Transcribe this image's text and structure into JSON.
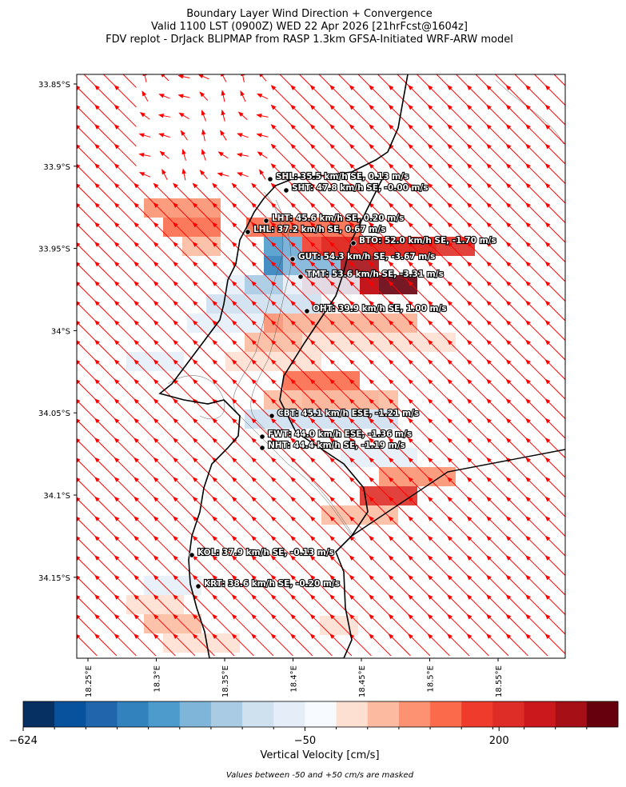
{
  "header": {
    "title_lines": [
      "Boundary Layer Wind Direction + Convergence",
      "Valid 1100 LST (0900Z) WED 22 Apr 2026 [21hrFcst@1604z]",
      "FDV replot - DrJack BLIPMAP from RASP 1.3km GFSA-Initiated WRF-ARW model"
    ]
  },
  "map": {
    "lat_ticks": [
      "33.85°S",
      "33.9°S",
      "33.95°S",
      "34°S",
      "34.05°S",
      "34.1°S",
      "34.15°S"
    ],
    "lon_ticks": [
      "18.25°E",
      "18.3°E",
      "18.35°E",
      "18.4°E",
      "18.45°E",
      "18.5°E",
      "18.55°E"
    ],
    "stations": [
      "SHL: 35.5 km/h SE, 0.13 m/s",
      "SHT: 47.8 km/h SE, -0.00 m/s",
      "LHT: 45.6 km/h SE, 0.20 m/s",
      "LHL: 37.2 km/h SE, 0.67 m/s",
      "BTO: 52.0 km/h SE, -1.70 m/s",
      "GUT: 54.3 km/h SE, -3.67 m/s",
      "TMT: 53.6 km/h SE, -3.31 m/s",
      "OHT: 39.9 km/h SE, 1.00 m/s",
      "CBT: 45.1 km/h ESE, -1.21 m/s",
      "FWT: 44.0 km/h ESE, -1.36 m/s",
      "NHT: 44.4 km/h SE, -1.19 m/s",
      "KOL: 37.9 km/h SE, -0.13 m/s",
      "KRT: 38.6 km/h SE, -0.20 m/s"
    ]
  },
  "colorbar": {
    "label": "Vertical Velocity [cm/s]",
    "tick_labels": [
      "−624",
      "−50",
      "200"
    ],
    "colors": [
      "#053061",
      "#08519c",
      "#2166ac",
      "#3182bd",
      "#4d9bcc",
      "#7fb5d9",
      "#a9cbe4",
      "#cfe0ef",
      "#e5eef8",
      "#f7fbff",
      "#fee0d2",
      "#fcbba1",
      "#fc9272",
      "#fb6a4a",
      "#ef3b2c",
      "#de2d26",
      "#cb181d",
      "#a50f15",
      "#67000d"
    ]
  },
  "footnote": "Values between -50 and +50 cm/s are masked"
}
